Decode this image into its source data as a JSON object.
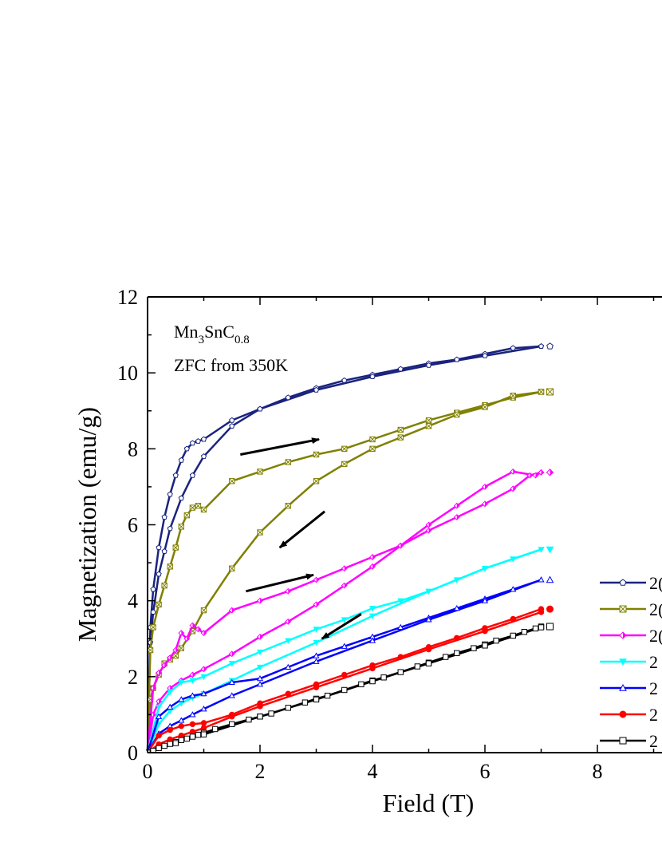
{
  "chart_data": {
    "type": "line",
    "xlabel": "Field (T)",
    "ylabel": "Magnetization (emu/g)",
    "xlim": [
      0,
      10
    ],
    "ylim": [
      0,
      12
    ],
    "xticks": [
      "0",
      "2",
      "4",
      "6",
      "8"
    ],
    "yticks": [
      "0",
      "2",
      "4",
      "6",
      "8",
      "10",
      "12"
    ],
    "annotation": {
      "compound_base": "Mn",
      "compound_sub1": "3",
      "compound_mid": "SnC",
      "compound_sub2": "0.8",
      "protocol": "ZFC from 350K"
    },
    "legend_placement": "right (cropped)",
    "series": [
      {
        "name": "2",
        "legend_label": "2(",
        "color": "#1a237e",
        "marker": "pentagon",
        "up_x": [
          0,
          0.05,
          0.1,
          0.2,
          0.3,
          0.4,
          0.5,
          0.6,
          0.7,
          0.8,
          0.9,
          1.0,
          1.5,
          2.0,
          2.5,
          3.0,
          3.5,
          4.0,
          4.5,
          5.0,
          5.5,
          6.0,
          6.5,
          7.0
        ],
        "up_y": [
          0,
          3.3,
          4.3,
          5.4,
          6.2,
          6.8,
          7.3,
          7.7,
          8.0,
          8.15,
          8.2,
          8.25,
          8.75,
          9.05,
          9.35,
          9.6,
          9.8,
          9.95,
          10.1,
          10.25,
          10.35,
          10.5,
          10.65,
          10.7
        ],
        "down_x": [
          7.0,
          6.0,
          5.0,
          4.0,
          3.0,
          2.0,
          1.5,
          1.0,
          0.8,
          0.6,
          0.4,
          0.3,
          0.2,
          0.1,
          0.05,
          0
        ],
        "down_y": [
          10.7,
          10.45,
          10.2,
          9.9,
          9.55,
          9.05,
          8.6,
          7.8,
          7.3,
          6.7,
          5.9,
          5.3,
          4.7,
          3.7,
          2.9,
          0
        ]
      },
      {
        "name": "2",
        "legend_label": "2(",
        "color": "#808000",
        "marker": "square-x",
        "up_x": [
          0,
          0.05,
          0.1,
          0.2,
          0.3,
          0.4,
          0.5,
          0.6,
          0.7,
          0.8,
          0.9,
          1.0,
          1.5,
          2.0,
          2.5,
          3.0,
          3.5,
          4.0,
          4.5,
          5.0,
          5.5,
          6.0,
          6.5,
          7.0
        ],
        "up_y": [
          0,
          2.7,
          3.3,
          3.9,
          4.4,
          4.9,
          5.4,
          5.95,
          6.25,
          6.45,
          6.5,
          6.4,
          7.15,
          7.4,
          7.65,
          7.85,
          8.0,
          8.25,
          8.5,
          8.75,
          8.95,
          9.15,
          9.35,
          9.5
        ],
        "down_x": [
          7.0,
          6.5,
          6.0,
          5.5,
          5.0,
          4.5,
          4.0,
          3.5,
          3.0,
          2.5,
          2.0,
          1.5,
          1.0,
          0.8,
          0.6,
          0.5,
          0.4,
          0.3,
          0.2,
          0.1,
          0.05,
          0
        ],
        "down_y": [
          9.5,
          9.4,
          9.1,
          8.9,
          8.6,
          8.3,
          8.0,
          7.6,
          7.15,
          6.5,
          5.8,
          4.85,
          3.75,
          3.2,
          2.75,
          2.55,
          2.45,
          2.35,
          2.05,
          1.7,
          1.4,
          0
        ]
      },
      {
        "name": "2",
        "legend_label": "2(",
        "color": "#ff00ff",
        "marker": "half-diamond",
        "up_x": [
          0,
          0.1,
          0.2,
          0.3,
          0.4,
          0.5,
          0.6,
          0.7,
          0.8,
          0.9,
          1.0,
          1.5,
          2.0,
          2.5,
          3.0,
          3.5,
          4.0,
          4.5,
          5.0,
          5.5,
          6.0,
          6.5,
          6.8,
          7.0
        ],
        "up_y": [
          0,
          1.7,
          2.1,
          2.3,
          2.5,
          2.7,
          3.15,
          3.0,
          3.35,
          3.25,
          3.15,
          3.75,
          4.0,
          4.25,
          4.55,
          4.85,
          5.15,
          5.45,
          5.85,
          6.2,
          6.55,
          6.95,
          7.3,
          7.38
        ],
        "down_x": [
          7.0,
          6.9,
          6.5,
          6.0,
          5.5,
          5.0,
          4.5,
          4.0,
          3.5,
          3.0,
          2.5,
          2.0,
          1.5,
          1.0,
          0.8,
          0.6,
          0.4,
          0.2,
          0.1,
          0
        ],
        "down_y": [
          7.38,
          7.3,
          7.4,
          7.0,
          6.5,
          6.0,
          5.45,
          4.9,
          4.4,
          3.9,
          3.45,
          3.05,
          2.6,
          2.2,
          2.05,
          1.9,
          1.7,
          1.35,
          1.0,
          0
        ]
      },
      {
        "name": "2",
        "legend_label": "2",
        "color": "#00ffff",
        "marker": "triangle-down",
        "up_x": [
          0,
          0.2,
          0.4,
          0.6,
          0.8,
          1.0,
          1.5,
          2.0,
          2.5,
          3.0,
          3.5,
          4.0,
          4.5,
          5.0,
          5.5,
          6.0,
          6.5,
          7.0
        ],
        "up_y": [
          0,
          1.2,
          1.6,
          1.85,
          1.9,
          2.0,
          2.35,
          2.65,
          2.95,
          3.25,
          3.5,
          3.8,
          4.0,
          4.25,
          4.55,
          4.85,
          5.1,
          5.35
        ],
        "down_x": [
          7.0,
          6.0,
          5.0,
          4.0,
          3.0,
          2.0,
          1.5,
          1.0,
          0.8,
          0.6,
          0.4,
          0.2,
          0
        ],
        "down_y": [
          5.35,
          4.85,
          4.25,
          3.6,
          2.9,
          2.25,
          1.9,
          1.55,
          1.45,
          1.3,
          1.1,
          0.75,
          0
        ]
      },
      {
        "name": "2",
        "legend_label": "2",
        "color": "#0000ff",
        "marker": "triangle-up",
        "up_x": [
          0,
          0.2,
          0.4,
          0.6,
          0.8,
          1.0,
          1.5,
          2.0,
          2.5,
          3.0,
          3.5,
          4.0,
          4.5,
          5.0,
          5.5,
          6.0,
          6.5,
          7.0
        ],
        "up_y": [
          0,
          0.95,
          1.2,
          1.4,
          1.5,
          1.55,
          1.85,
          1.95,
          2.25,
          2.55,
          2.8,
          3.05,
          3.3,
          3.55,
          3.8,
          4.05,
          4.3,
          4.55
        ],
        "down_x": [
          7.0,
          6.0,
          5.0,
          4.0,
          3.0,
          2.0,
          1.5,
          1.0,
          0.8,
          0.6,
          0.4,
          0.2,
          0
        ],
        "down_y": [
          4.55,
          4.0,
          3.5,
          2.95,
          2.4,
          1.8,
          1.5,
          1.15,
          1.0,
          0.85,
          0.7,
          0.5,
          0
        ]
      },
      {
        "name": "2",
        "legend_label": "2",
        "color": "#ff0000",
        "marker": "circle",
        "up_x": [
          0,
          0.2,
          0.4,
          0.6,
          0.8,
          1.0,
          1.5,
          2.0,
          2.5,
          3.0,
          3.5,
          4.0,
          4.5,
          5.0,
          5.5,
          6.0,
          6.5,
          7.0
        ],
        "up_y": [
          0,
          0.45,
          0.6,
          0.7,
          0.75,
          0.78,
          1.0,
          1.3,
          1.55,
          1.8,
          2.05,
          2.3,
          2.52,
          2.78,
          3.02,
          3.28,
          3.52,
          3.78
        ],
        "down_x": [
          7.0,
          6.0,
          5.0,
          4.0,
          3.0,
          2.0,
          1.5,
          1.0,
          0.8,
          0.6,
          0.4,
          0.2,
          0
        ],
        "down_y": [
          3.7,
          3.2,
          2.72,
          2.22,
          1.72,
          1.22,
          0.95,
          0.65,
          0.55,
          0.45,
          0.35,
          0.22,
          0
        ]
      },
      {
        "name": "2",
        "legend_label": "2",
        "color": "#000000",
        "marker": "square-open",
        "up_x": [
          0,
          0.1,
          0.2,
          0.3,
          0.4,
          0.5,
          0.6,
          0.7,
          0.8,
          0.9,
          1.0,
          1.2,
          1.5,
          1.8,
          2.0,
          2.2,
          2.5,
          2.8,
          3.0,
          3.2,
          3.5,
          3.8,
          4.0,
          4.2,
          4.5,
          4.8,
          5.0,
          5.3,
          5.5,
          5.8,
          6.0,
          6.2,
          6.5,
          6.7,
          6.9,
          7.0
        ],
        "up_y": [
          0,
          0.05,
          0.12,
          0.18,
          0.23,
          0.28,
          0.33,
          0.37,
          0.42,
          0.47,
          0.52,
          0.62,
          0.75,
          0.87,
          0.95,
          1.03,
          1.18,
          1.32,
          1.42,
          1.5,
          1.65,
          1.8,
          1.9,
          1.98,
          2.12,
          2.27,
          2.37,
          2.52,
          2.62,
          2.75,
          2.85,
          2.95,
          3.08,
          3.18,
          3.27,
          3.32
        ],
        "down_x": [
          7.0,
          6.0,
          5.0,
          4.0,
          3.0,
          2.0,
          1.0,
          0.5,
          0
        ],
        "down_y": [
          3.3,
          2.82,
          2.35,
          1.88,
          1.4,
          0.95,
          0.48,
          0.25,
          0
        ]
      }
    ],
    "arrows": [
      {
        "x1": 1.65,
        "y1": 7.85,
        "x2": 3.05,
        "y2": 8.25
      },
      {
        "x1": 3.15,
        "y1": 6.35,
        "x2": 2.35,
        "y2": 5.4
      },
      {
        "x1": 1.75,
        "y1": 4.25,
        "x2": 2.95,
        "y2": 4.68
      },
      {
        "x1": 3.8,
        "y1": 3.65,
        "x2": 3.1,
        "y2": 3.0
      }
    ]
  }
}
